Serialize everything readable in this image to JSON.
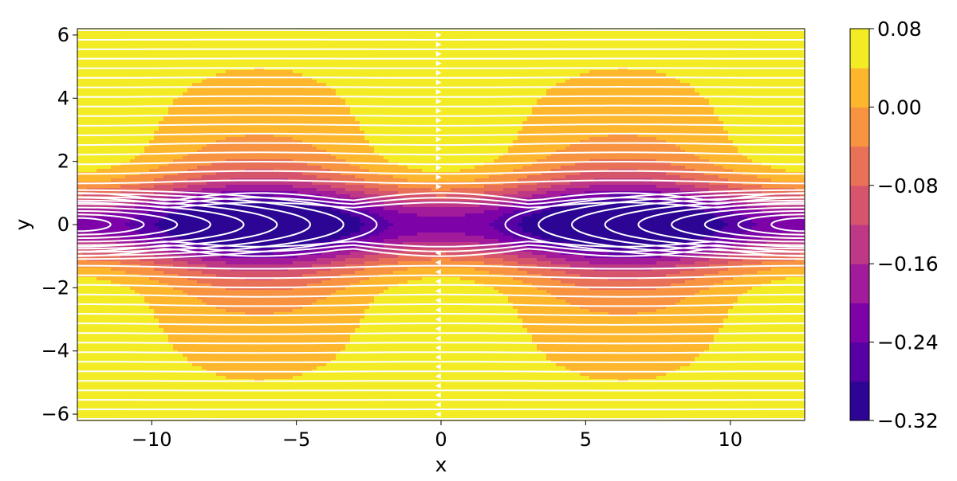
{
  "chart_data": {
    "type": "contour",
    "xlabel": "x",
    "ylabel": "y",
    "xlim": [
      -12.57,
      12.57
    ],
    "ylim": [
      -6.2,
      6.2
    ],
    "xticks": [
      -10,
      -5,
      0,
      5,
      10
    ],
    "xtick_labels": [
      "−10",
      "−5",
      "0",
      "5",
      "10"
    ],
    "yticks": [
      -6,
      -4,
      -2,
      0,
      2,
      4,
      6
    ],
    "ytick_labels": [
      "−6",
      "−4",
      "−2",
      "0",
      "2",
      "4",
      "6"
    ],
    "colormap": "plasma",
    "streamlines": true,
    "streamline_color": "#ffffff",
    "colorbar": {
      "levels": [
        -0.32,
        -0.28,
        -0.24,
        -0.2,
        -0.16,
        -0.12,
        -0.08,
        -0.04,
        0.0,
        0.04,
        0.08
      ],
      "colors": [
        "#2c0594",
        "#5701a4",
        "#7d03a8",
        "#a11b9b",
        "#be3885",
        "#d6556d",
        "#e97158",
        "#f89441",
        "#feb72d",
        "#f3ec25"
      ],
      "ticks": [
        0.08,
        0.0,
        -0.08,
        -0.16,
        -0.24,
        -0.32
      ],
      "tick_labels": [
        "0.08",
        "0.00",
        "−0.08",
        "−0.16",
        "−0.24",
        "−0.32"
      ]
    }
  }
}
